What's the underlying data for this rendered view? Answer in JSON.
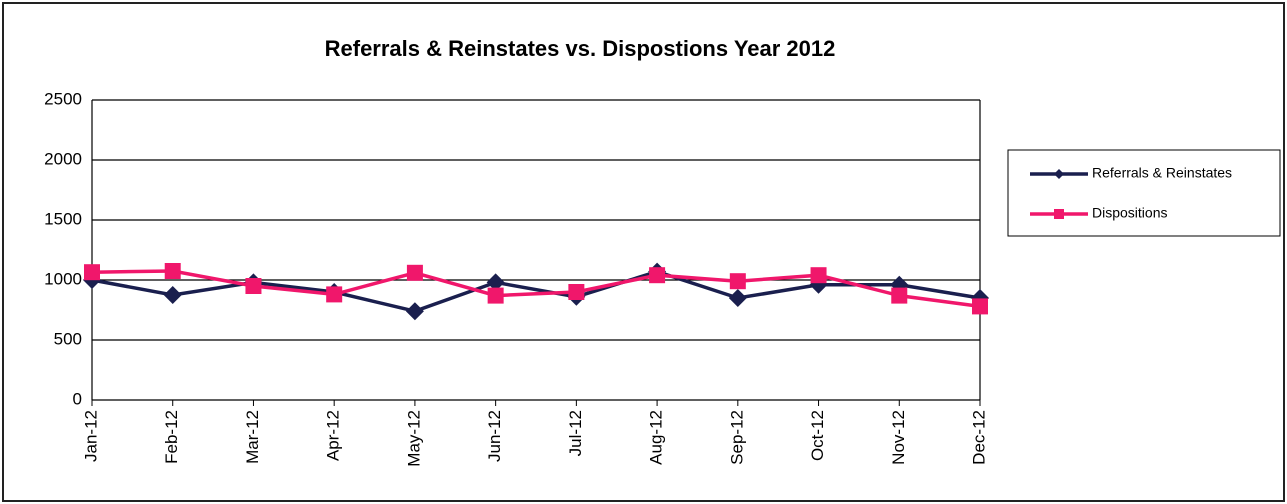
{
  "chart_data": {
    "type": "line",
    "title": "Referrals & Reinstates vs. Dispostions  Year 2012",
    "categories": [
      "Jan-12",
      "Feb-12",
      "Mar-12",
      "Apr-12",
      "May-12",
      "Jun-12",
      "Jul-12",
      "Aug-12",
      "Sep-12",
      "Oct-12",
      "Nov-12",
      "Dec-12"
    ],
    "series": [
      {
        "name": "Referrals & Reinstates",
        "color": "#1a1f4e",
        "marker": "diamond",
        "values": [
          1000,
          875,
          980,
          900,
          740,
          980,
          860,
          1070,
          850,
          960,
          960,
          850
        ]
      },
      {
        "name": "Dispositions",
        "color": "#f0176b",
        "marker": "square",
        "values": [
          1065,
          1075,
          950,
          880,
          1060,
          870,
          900,
          1040,
          990,
          1040,
          870,
          780
        ]
      }
    ],
    "ylim": [
      0,
      2500
    ],
    "yticks": [
      0,
      500,
      1000,
      1500,
      2000,
      2500
    ],
    "grid": true,
    "legend": "right"
  }
}
